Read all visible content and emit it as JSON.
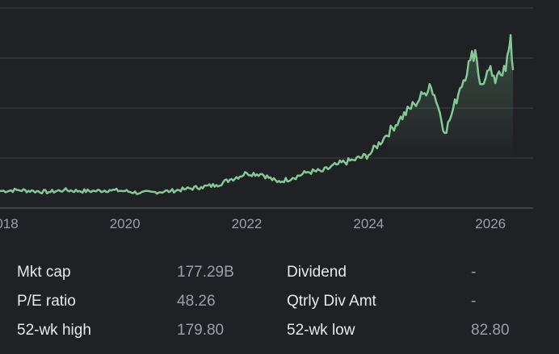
{
  "chart_data": {
    "type": "line",
    "x_tick_labels": [
      "2018",
      "2020",
      "2022",
      "2024",
      "2026"
    ],
    "xlim": [
      2017.95,
      2026.7
    ],
    "ylim": [
      0,
      200
    ],
    "grid": true,
    "line_color": "#81c995",
    "series": [
      {
        "x": [
          2017.95,
          2018.25,
          2018.5,
          2018.75,
          2019.0,
          2019.25,
          2019.5,
          2019.75,
          2020.0,
          2020.25,
          2020.5,
          2020.75,
          2021.0,
          2021.25,
          2021.5,
          2021.75,
          2022.0,
          2022.25,
          2022.5,
          2022.75,
          2023.0,
          2023.25,
          2023.5,
          2023.75,
          2024.0,
          2024.25,
          2024.5,
          2024.75,
          2024.92,
          2025.0,
          2025.08,
          2025.17,
          2025.25,
          2025.33,
          2025.5,
          2025.67,
          2025.75,
          2025.83,
          2025.92,
          2026.0,
          2026.08,
          2026.17,
          2026.25,
          2026.3,
          2026.33,
          2026.37
        ],
        "y": [
          17,
          18,
          17,
          16,
          18,
          17,
          17,
          18,
          17,
          15,
          16,
          17,
          19,
          21,
          23,
          29,
          35,
          34,
          26,
          30,
          36,
          37,
          44,
          48,
          53,
          70,
          88,
          104,
          115,
          124,
          113,
          95,
          75,
          88,
          120,
          148,
          158,
          124,
          130,
          142,
          125,
          133,
          137,
          158,
          173,
          138
        ]
      }
    ]
  },
  "stats": {
    "rows": [
      {
        "label1": "Mkt cap",
        "value1": "177.29B",
        "label2": "Dividend",
        "value2": "-"
      },
      {
        "label1": "P/E ratio",
        "value1": "48.26",
        "label2": "Qtrly Div Amt",
        "value2": "-"
      },
      {
        "label1": "52-wk high",
        "value1": "179.80",
        "label2": "52-wk low",
        "value2": "82.80"
      }
    ]
  }
}
